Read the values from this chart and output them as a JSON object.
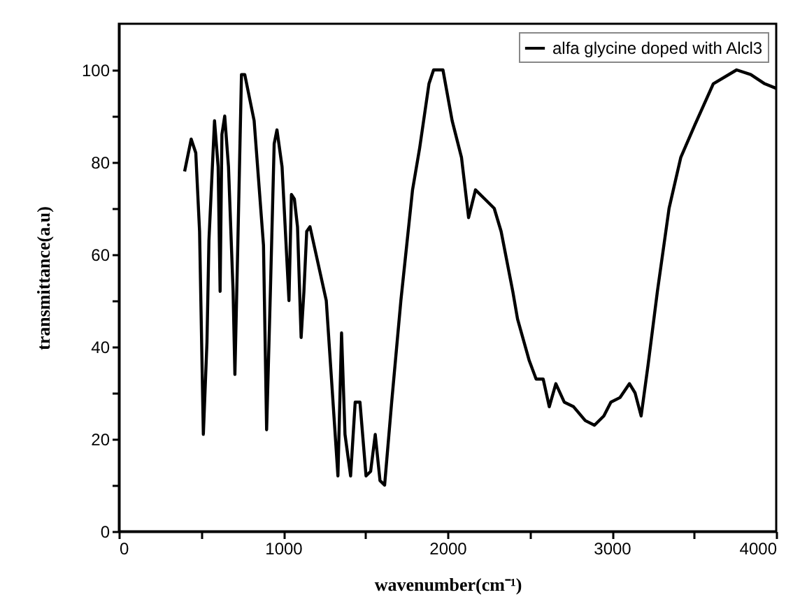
{
  "chart_data": {
    "type": "line",
    "xlabel": "wavenumber(cm⁻¹)",
    "ylabel": "transmittance(a.u)",
    "xlim": [
      0,
      4000
    ],
    "ylim": [
      0,
      110
    ],
    "xticks": [
      0,
      {
        "value": 500,
        "label": null
      },
      1000,
      {
        "value": 1500,
        "label": null
      },
      2000,
      {
        "value": 2500,
        "label": null
      },
      3000,
      {
        "value": 3500,
        "label": null
      },
      4000
    ],
    "yticks": [
      0,
      {
        "value": 10,
        "label": null
      },
      20,
      {
        "value": 30,
        "label": null
      },
      40,
      {
        "value": 50,
        "label": null
      },
      60,
      {
        "value": 70,
        "label": null
      },
      80,
      {
        "value": 90,
        "label": null
      },
      100
    ],
    "legend": "top right",
    "grid": false,
    "series": [
      {
        "name": "alfa glycine doped with Alcl3",
        "color": "#000000",
        "x": [
          400,
          440,
          468,
          491,
          514,
          536,
          548,
          582,
          604,
          616,
          627,
          644,
          667,
          695,
          706,
          723,
          746,
          766,
          823,
          880,
          899,
          922,
          945,
          962,
          993,
          1035,
          1050,
          1068,
          1087,
          1109,
          1126,
          1143,
          1163,
          1262,
          1333,
          1355,
          1376,
          1410,
          1438,
          1467,
          1504,
          1532,
          1560,
          1589,
          1617,
          1660,
          1716,
          1787,
          1830,
          1887,
          1915,
          1972,
          2028,
          2085,
          2128,
          2170,
          2227,
          2284,
          2326,
          2397,
          2426,
          2497,
          2539,
          2582,
          2619,
          2659,
          2710,
          2767,
          2838,
          2894,
          2951,
          2994,
          3050,
          3107,
          3141,
          3178,
          3220,
          3277,
          3348,
          3419,
          3504,
          3617,
          3759,
          3845,
          3930,
          4000
        ],
        "values": [
          78,
          85,
          82,
          65,
          21,
          41,
          63,
          89,
          79,
          52,
          86,
          90,
          79,
          52,
          34,
          61,
          99,
          99,
          89,
          62,
          22,
          52,
          84,
          87,
          79,
          50,
          73,
          72,
          66,
          42,
          52,
          65,
          66,
          50,
          12,
          43,
          21,
          12,
          28,
          28,
          12,
          13,
          21,
          11,
          10,
          28,
          50,
          74,
          83,
          97,
          100,
          100,
          89,
          81,
          68,
          74,
          72,
          70,
          65,
          52,
          46,
          37,
          33,
          33,
          27,
          32,
          28,
          27,
          24,
          23,
          25,
          28,
          29,
          32,
          30,
          25,
          36,
          52,
          70,
          81,
          88,
          97,
          100,
          99,
          97,
          96
        ]
      }
    ]
  }
}
